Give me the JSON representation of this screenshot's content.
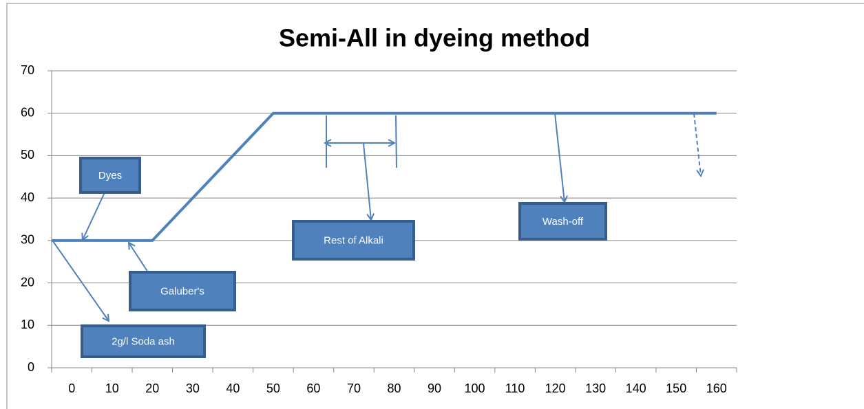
{
  "chart_data": {
    "type": "line",
    "title": "Semi-All in dyeing method",
    "xlim": [
      -5,
      165
    ],
    "xticks": [
      0,
      10,
      20,
      30,
      40,
      50,
      60,
      70,
      80,
      90,
      100,
      110,
      120,
      130,
      140,
      150,
      160
    ],
    "xtick_marks": [
      -5,
      5,
      15,
      25,
      35,
      45,
      55,
      65,
      75,
      85,
      95,
      105,
      115,
      125,
      135,
      145,
      155,
      165
    ],
    "ylim": [
      0,
      70
    ],
    "yticks": [
      0,
      10,
      20,
      30,
      40,
      50,
      60,
      70
    ],
    "grid": true,
    "series": [
      {
        "color": "#4f81bd",
        "x": [
          -5,
          20,
          50,
          160
        ],
        "values": [
          30,
          30,
          60,
          60
        ]
      }
    ],
    "annotations": [
      "Dyes",
      "Galuber's",
      "2g/l Soda ash",
      "Rest of Alkali",
      "Wash-off"
    ]
  }
}
